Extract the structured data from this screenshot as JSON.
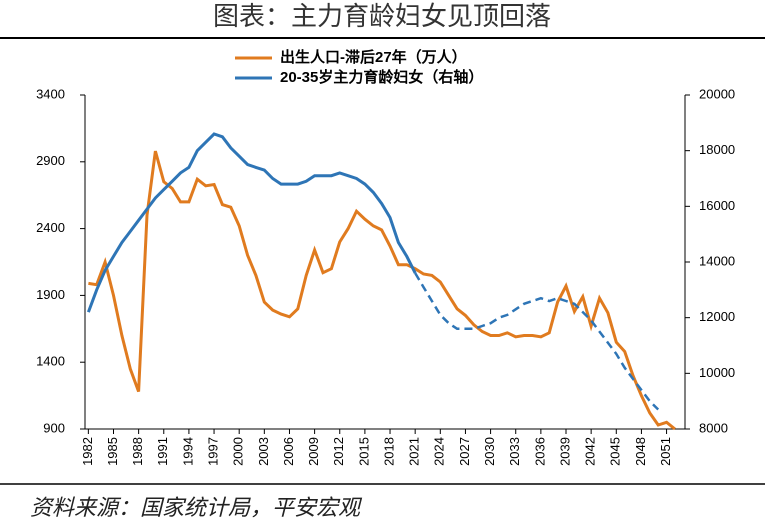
{
  "chart_data": {
    "type": "line",
    "title": "图表：主力育龄妇女见顶回落",
    "source": "资料来源：国家统计局，平安宏观",
    "x": [
      1982,
      1983,
      1984,
      1985,
      1986,
      1987,
      1988,
      1989,
      1990,
      1991,
      1992,
      1993,
      1994,
      1995,
      1996,
      1997,
      1998,
      1999,
      2000,
      2001,
      2002,
      2003,
      2004,
      2005,
      2006,
      2007,
      2008,
      2009,
      2010,
      2011,
      2012,
      2013,
      2014,
      2015,
      2016,
      2017,
      2018,
      2019,
      2020,
      2021,
      2022,
      2023,
      2024,
      2025,
      2026,
      2027,
      2028,
      2029,
      2030,
      2031,
      2032,
      2033,
      2034,
      2035,
      2036,
      2037,
      2038,
      2039,
      2040,
      2041,
      2042,
      2043,
      2044,
      2045,
      2046,
      2047,
      2048,
      2049,
      2050,
      2051,
      2052
    ],
    "series": [
      {
        "name": "出生人口-滞后27年（万人）",
        "color": "#e07b1f",
        "axis": "y",
        "values": [
          1990,
          1980,
          2150,
          1900,
          1600,
          1350,
          1180,
          2500,
          2980,
          2750,
          2700,
          2600,
          2600,
          2770,
          2720,
          2730,
          2580,
          2560,
          2420,
          2200,
          2050,
          1850,
          1790,
          1760,
          1740,
          1800,
          2050,
          2240,
          2070,
          2100,
          2300,
          2400,
          2530,
          2470,
          2420,
          2390,
          2270,
          2130,
          2130,
          2100,
          2060,
          2050,
          2000,
          1900,
          1800,
          1750,
          1680,
          1630,
          1600,
          1600,
          1620,
          1590,
          1600,
          1600,
          1590,
          1620,
          1850,
          1970,
          1780,
          1890,
          1670,
          1880,
          1770,
          1550,
          1480,
          1300,
          1150,
          1020,
          930,
          950,
          900
        ]
      },
      {
        "name": "20-35岁主力育龄妇女（右轴）",
        "color": "#2e75b6",
        "axis": "y2",
        "dashed_after": 2021,
        "values": [
          12200,
          13000,
          13700,
          14200,
          14700,
          15100,
          15500,
          15900,
          16300,
          16600,
          16900,
          17200,
          17400,
          18000,
          18300,
          18600,
          18500,
          18100,
          17800,
          17500,
          17400,
          17300,
          17000,
          16800,
          16800,
          16800,
          16900,
          17100,
          17100,
          17100,
          17200,
          17100,
          17000,
          16800,
          16500,
          16100,
          15600,
          14700,
          14200,
          13600,
          13100,
          12600,
          12100,
          11800,
          11600,
          11600,
          11600,
          11700,
          11800,
          12000,
          12100,
          12300,
          12500,
          12600,
          12700,
          12600,
          12700,
          12600,
          12500,
          12200,
          11900,
          11500,
          11100,
          10700,
          10200,
          9800,
          9400,
          9000,
          8700,
          null,
          null
        ]
      }
    ],
    "xlim": [
      1981.6,
      2053.2
    ],
    "xticks": [
      1982,
      1985,
      1988,
      1991,
      1994,
      1997,
      2000,
      2003,
      2006,
      2009,
      2012,
      2015,
      2018,
      2021,
      2024,
      2027,
      2030,
      2033,
      2036,
      2039,
      2042,
      2045,
      2048,
      2051
    ],
    "ylim": [
      900,
      3400
    ],
    "yticks": [
      900,
      1400,
      1900,
      2400,
      2900,
      3400
    ],
    "y2lim": [
      8000,
      20000
    ],
    "y2ticks": [
      8000,
      10000,
      12000,
      14000,
      16000,
      18000,
      20000
    ]
  }
}
